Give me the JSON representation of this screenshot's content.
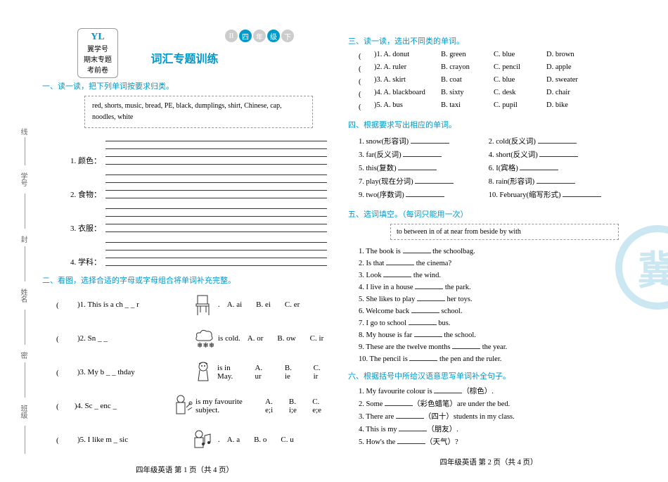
{
  "badge": {
    "code": "YL",
    "line1": "翼学号",
    "line2": "期末专题",
    "line3": "考前卷"
  },
  "circles": [
    "II",
    "四",
    "年",
    "级",
    "下"
  ],
  "title": "词汇专题训练",
  "sec1": {
    "head": "一、读一读，把下列单词按要求归类。",
    "words": "red, shorts, music, bread, PE, black, dumplings, shirt, Chinese, cap, noodles, white",
    "cats": [
      "1. 颜色：",
      "2. 食物：",
      "3. 衣服：",
      "4. 学科："
    ]
  },
  "sec2": {
    "head": "二、看图，选择合适的字母或字母组合将单词补充完整。",
    "items": [
      {
        "q": ")1. This is a ch _ _ r",
        "a": "A. ai",
        "b": "B. ei",
        "c": "C. er",
        "icon": "chair"
      },
      {
        "q": ")2. Sn _ _",
        "suffix": "is cold.",
        "a": "A. or",
        "b": "B. ow",
        "c": "C. ir",
        "icon": "snow"
      },
      {
        "q": ")3. My b _ _ thday",
        "suffix": "is in May.",
        "a": "A. ur",
        "b": "B. ie",
        "c": "C. ir",
        "icon": "girl"
      },
      {
        "q": ")4. Sc _ enc _",
        "suffix": "is my favourite subject.",
        "a": "A. e;i",
        "b": "B. i;e",
        "c": "C. e;e",
        "icon": "science"
      },
      {
        "q": ")5. I like m _ sic",
        "suffix": ".",
        "a": "A. a",
        "b": "B. o",
        "c": "C. u",
        "icon": "music"
      }
    ]
  },
  "footer_left": "四年级英语  第 1 页（共 4 页）",
  "sec3": {
    "head": "三、读一读，选出不同类的单词。",
    "rows": [
      {
        "n": ")1. A. donut",
        "b": "B. green",
        "c": "C. blue",
        "d": "D. brown"
      },
      {
        "n": ")2. A. ruler",
        "b": "B. crayon",
        "c": "C. pencil",
        "d": "D. apple"
      },
      {
        "n": ")3. A. skirt",
        "b": "B. coat",
        "c": "C. blue",
        "d": "D. sweater"
      },
      {
        "n": ")4. A. blackboard",
        "b": "B. sixty",
        "c": "C. desk",
        "d": "D. chair"
      },
      {
        "n": ")5. A. bus",
        "b": "B. taxi",
        "c": "C. pupil",
        "d": "D. bike"
      }
    ]
  },
  "sec4": {
    "head": "四、根据要求写出相应的单词。",
    "items": [
      "1. snow(形容词)",
      "2. cold(反义词)",
      "3. far(反义词)",
      "4. short(反义词)",
      "5. this(复数)",
      "6. I(宾格)",
      "7. play(现在分词)",
      "8. rain(形容词)",
      "9. two(序数词)",
      "10. February(缩写形式)"
    ]
  },
  "sec5": {
    "head": "五、选词填空。（每词只能用一次）",
    "box": "to  between  in  of  at  near  from  beside  by  with",
    "rows": [
      {
        "pre": "1. The book is ",
        "post": " the schoolbag."
      },
      {
        "pre": "2. Is that ",
        "post": " the cinema?"
      },
      {
        "pre": "3. Look ",
        "post": " the wind."
      },
      {
        "pre": "4. I live in a house ",
        "post": " the park."
      },
      {
        "pre": "5. She likes to play ",
        "post": " her toys."
      },
      {
        "pre": "6. Welcome back ",
        "post": " school."
      },
      {
        "pre": "7. I go to school ",
        "post": " bus."
      },
      {
        "pre": "8. My house is far ",
        "post": " the school."
      },
      {
        "pre": "9. These are the twelve months ",
        "post": " the year."
      },
      {
        "pre": "10. The pencil is ",
        "post": " the pen and the ruler."
      }
    ]
  },
  "sec6": {
    "head": "六、根据括号中所给汉语意思写单词补全句子。",
    "rows": [
      {
        "pre": "1. My favourite colour is ",
        "post": "（棕色）."
      },
      {
        "pre": "2. Some ",
        "post": "（彩色蜡笔）are under the bed."
      },
      {
        "pre": "3. There are ",
        "post": "（四十）students in my class."
      },
      {
        "pre": "4. This is my ",
        "post": "（朋友）."
      },
      {
        "pre": "5. How's the ",
        "post": "（天气）?"
      }
    ]
  },
  "footer_right": "四年级英语  第 2 页（共 4 页）",
  "margin_labels": [
    "线",
    "学号",
    "封",
    "姓名",
    "密",
    "班级"
  ],
  "watermark": "冀"
}
